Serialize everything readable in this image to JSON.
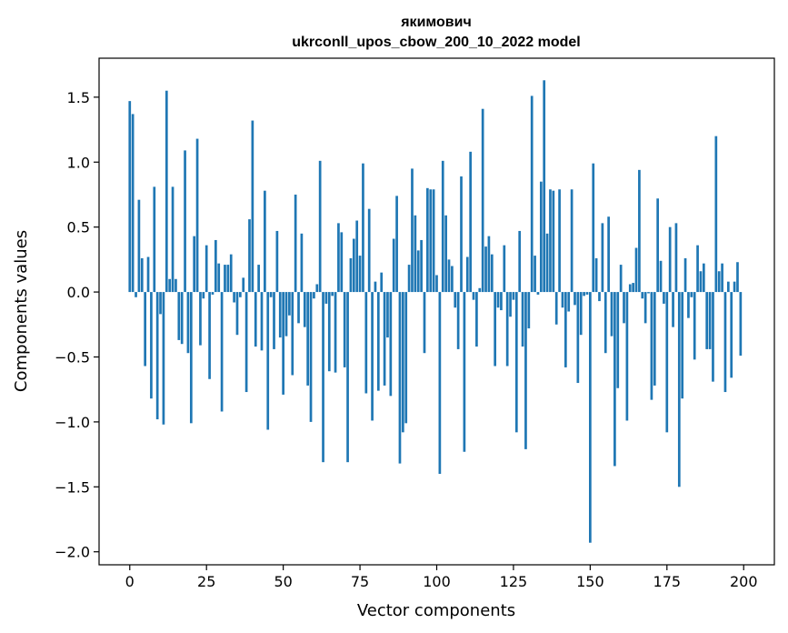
{
  "chart_data": {
    "type": "bar",
    "title": "якимович",
    "subtitle": "ukrconll_upos_cbow_200_10_2022 model",
    "xlabel": "Vector components",
    "ylabel": "Components values",
    "xlim": [
      -10,
      210
    ],
    "ylim": [
      -2.1,
      1.8
    ],
    "xticks": [
      0,
      25,
      50,
      75,
      100,
      125,
      150,
      175,
      200
    ],
    "yticks": [
      -2.0,
      -1.5,
      -1.0,
      -0.5,
      0.0,
      0.5,
      1.0,
      1.5
    ],
    "ytick_labels": [
      "−2.0",
      "−1.5",
      "−1.0",
      "−0.5",
      "0.0",
      "0.5",
      "1.0",
      "1.5"
    ],
    "grid": false,
    "bar_color": "#1f77b4",
    "x": [
      0,
      1,
      2,
      3,
      4,
      5,
      6,
      7,
      8,
      9,
      10,
      11,
      12,
      13,
      14,
      15,
      16,
      17,
      18,
      19,
      20,
      21,
      22,
      23,
      24,
      25,
      26,
      27,
      28,
      29,
      30,
      31,
      32,
      33,
      34,
      35,
      36,
      37,
      38,
      39,
      40,
      41,
      42,
      43,
      44,
      45,
      46,
      47,
      48,
      49,
      50,
      51,
      52,
      53,
      54,
      55,
      56,
      57,
      58,
      59,
      60,
      61,
      62,
      63,
      64,
      65,
      66,
      67,
      68,
      69,
      70,
      71,
      72,
      73,
      74,
      75,
      76,
      77,
      78,
      79,
      80,
      81,
      82,
      83,
      84,
      85,
      86,
      87,
      88,
      89,
      90,
      91,
      92,
      93,
      94,
      95,
      96,
      97,
      98,
      99,
      100,
      101,
      102,
      103,
      104,
      105,
      106,
      107,
      108,
      109,
      110,
      111,
      112,
      113,
      114,
      115,
      116,
      117,
      118,
      119,
      120,
      121,
      122,
      123,
      124,
      125,
      126,
      127,
      128,
      129,
      130,
      131,
      132,
      133,
      134,
      135,
      136,
      137,
      138,
      139,
      140,
      141,
      142,
      143,
      144,
      145,
      146,
      147,
      148,
      149,
      150,
      151,
      152,
      153,
      154,
      155,
      156,
      157,
      158,
      159,
      160,
      161,
      162,
      163,
      164,
      165,
      166,
      167,
      168,
      169,
      170,
      171,
      172,
      173,
      174,
      175,
      176,
      177,
      178,
      179,
      180,
      181,
      182,
      183,
      184,
      185,
      186,
      187,
      188,
      189,
      190,
      191,
      192,
      193,
      194,
      195,
      196,
      197,
      198,
      199
    ],
    "values": [
      1.47,
      1.37,
      -0.04,
      0.71,
      0.26,
      -0.57,
      0.27,
      -0.82,
      0.81,
      -0.98,
      -0.17,
      -1.02,
      1.55,
      0.1,
      0.81,
      0.1,
      -0.37,
      -0.4,
      1.09,
      -0.47,
      -1.01,
      0.43,
      1.18,
      -0.41,
      -0.05,
      0.36,
      -0.67,
      -0.02,
      0.4,
      0.22,
      -0.92,
      0.21,
      0.21,
      0.29,
      -0.08,
      -0.33,
      -0.04,
      0.11,
      -0.77,
      0.56,
      1.32,
      -0.42,
      0.21,
      -0.45,
      0.78,
      -1.06,
      -0.04,
      -0.44,
      0.47,
      -0.35,
      -0.79,
      -0.34,
      -0.18,
      -0.64,
      0.75,
      -0.24,
      0.45,
      -0.27,
      -0.72,
      -1.0,
      -0.05,
      0.06,
      1.01,
      -1.31,
      -0.09,
      -0.61,
      -0.03,
      -0.62,
      0.53,
      0.46,
      -0.58,
      -1.31,
      0.26,
      0.41,
      0.55,
      0.28,
      0.99,
      -0.78,
      0.64,
      -0.99,
      0.08,
      -0.76,
      0.15,
      -0.72,
      -0.35,
      -0.8,
      0.41,
      0.74,
      -1.32,
      -1.08,
      -1.01,
      0.21,
      0.95,
      0.59,
      0.32,
      0.4,
      -0.47,
      0.8,
      0.79,
      0.79,
      0.13,
      -1.4,
      1.01,
      0.59,
      0.25,
      0.2,
      -0.12,
      -0.44,
      0.89,
      -1.23,
      0.27,
      1.08,
      -0.06,
      -0.42,
      0.03,
      1.41,
      0.35,
      0.43,
      0.29,
      -0.57,
      -0.12,
      -0.14,
      0.36,
      -0.57,
      -0.19,
      -0.06,
      -1.08,
      0.47,
      -0.42,
      -1.21,
      -0.28,
      1.51,
      0.28,
      -0.02,
      0.85,
      1.63,
      0.45,
      0.79,
      0.78,
      -0.25,
      0.79,
      -0.12,
      -0.58,
      -0.15,
      0.79,
      -0.1,
      -0.7,
      -0.33,
      -0.03,
      -0.02,
      -1.93,
      0.99,
      0.26,
      -0.07,
      0.53,
      -0.47,
      0.58,
      -0.34,
      -1.34,
      -0.74,
      0.21,
      -0.24,
      -0.99,
      0.06,
      0.07,
      0.34,
      0.94,
      -0.05,
      -0.24,
      -0.01,
      -0.83,
      -0.72,
      0.72,
      0.24,
      -0.09,
      -1.08,
      0.5,
      -0.27,
      0.53,
      -1.5,
      -0.82,
      0.26,
      -0.2,
      -0.04,
      -0.52,
      0.36,
      0.16,
      0.22,
      -0.44,
      -0.44,
      -0.69,
      1.2,
      0.16,
      0.22,
      -0.77,
      0.08,
      -0.66,
      0.08,
      0.23,
      -0.49
    ]
  }
}
